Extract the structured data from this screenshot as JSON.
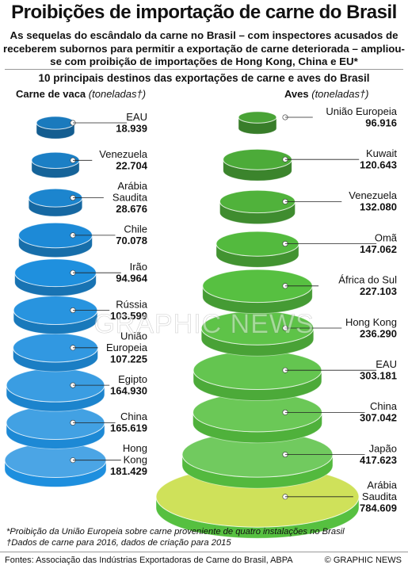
{
  "header": {
    "title": "Proibições de importação de carne do Brasil",
    "subtitle": "As sequelas do escândalo da carne no Brasil – com inspectores acusados de receberem subornos para permitir a exportação de carne deteriorada – ampliou-se com proibição de importações de Hong Kong, China e EU*"
  },
  "colors": {
    "beef": "#1e8fde",
    "poultry": "#56c040"
  },
  "footnotes": {
    "line1": "*Proibição da União Europeia sobre carne proveniente de quatro instalações no Brasil",
    "line2": "†Dados de carne para 2016, dados de criação para 2015"
  },
  "footer": {
    "sources": "Fontes: Associação das Indústrias Exportadoras de Carne do Brasil, ABPA",
    "credit": "© GRAPHIC NEWS"
  },
  "watermark": "GRAPHIC NEWS",
  "chart_data": {
    "type": "stacked-disc",
    "title": "10 principais destinos das exportações de carne e aves do Brasil",
    "panels": [
      {
        "name": "Carne de vaca",
        "unit": "(toneladas†)",
        "categories": [
          [
            "EAU"
          ],
          [
            "Venezuela"
          ],
          [
            "Arábia",
            "Saudita"
          ],
          [
            "Chile"
          ],
          [
            "Irão"
          ],
          [
            "Rússia"
          ],
          [
            "União",
            "Europeia"
          ],
          [
            "Egipto"
          ],
          [
            "China"
          ],
          [
            "Hong",
            "Kong"
          ]
        ],
        "labels": [
          "18.939",
          "22.704",
          "28.676",
          "70.078",
          "94.964",
          "103.599",
          "107.225",
          "164.930",
          "165.619",
          "181.429"
        ],
        "values": [
          18939,
          22704,
          28676,
          70078,
          94964,
          103599,
          107225,
          164930,
          165619,
          181429
        ]
      },
      {
        "name": "Aves",
        "unit": "(toneladas†)",
        "categories": [
          [
            "União Europeia"
          ],
          [
            "Kuwait"
          ],
          [
            "Venezuela"
          ],
          [
            "Omã"
          ],
          [
            "África do Sul"
          ],
          [
            "Hong Kong"
          ],
          [
            "EAU"
          ],
          [
            "China"
          ],
          [
            "Japão"
          ],
          [
            "Arábia",
            "Saudita"
          ]
        ],
        "labels": [
          "96.916",
          "120.643",
          "132.080",
          "147.062",
          "227.103",
          "236.290",
          "303.181",
          "307.042",
          "417.623",
          "784.609"
        ],
        "values": [
          96916,
          120643,
          132080,
          147062,
          227103,
          236290,
          303181,
          307042,
          417623,
          784609
        ]
      }
    ]
  }
}
